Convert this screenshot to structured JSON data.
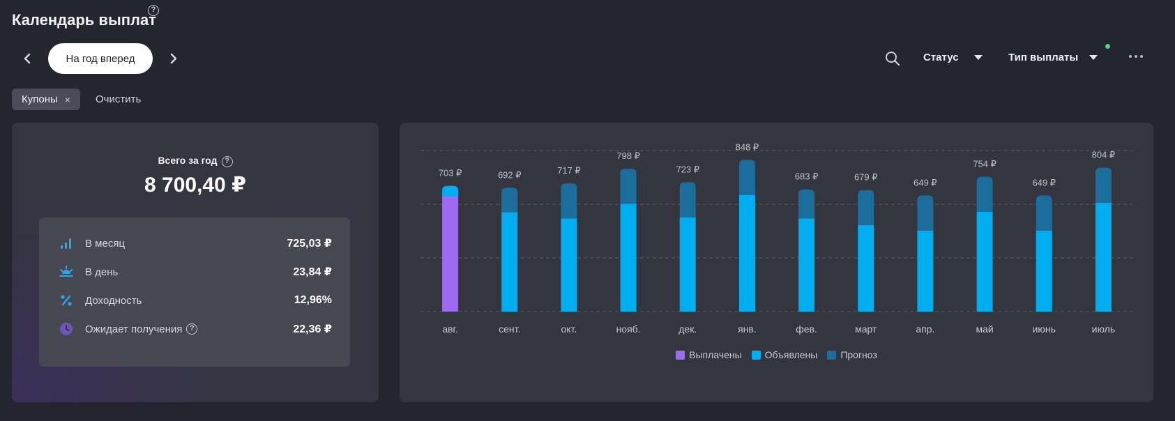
{
  "header": {
    "title": "Календарь выплат",
    "period_label": "На год вперед",
    "status_label": "Статус",
    "payout_type_label": "Тип выплаты"
  },
  "filters": {
    "chip_label": "Купоны",
    "chip_close": "×",
    "clear_label": "Очистить"
  },
  "summary": {
    "total_label": "Всего за год",
    "total_value": "8 700,40 ₽",
    "stats": [
      {
        "label": "В месяц",
        "value": "725,03 ₽",
        "icon": "bar-chart-icon"
      },
      {
        "label": "В день",
        "value": "23,84 ₽",
        "icon": "sunrise-icon"
      },
      {
        "label": "Доходность",
        "value": "12,96%",
        "icon": "percent-icon"
      },
      {
        "label": "Ожидает получения",
        "value": "22,36 ₽",
        "icon": "clock-icon"
      }
    ]
  },
  "colors": {
    "paid": "#9d6bf2",
    "announced": "#00adf0",
    "forecast": "#1b6e9c"
  },
  "chart_data": {
    "type": "bar",
    "stacked": true,
    "categories": [
      "авг.",
      "сент.",
      "окт.",
      "нояб.",
      "дек.",
      "янв.",
      "фев.",
      "март",
      "апр.",
      "май",
      "июнь",
      "июль"
    ],
    "value_labels": [
      "703 ₽",
      "692 ₽",
      "717 ₽",
      "798 ₽",
      "723 ₽",
      "848 ₽",
      "683 ₽",
      "679 ₽",
      "649 ₽",
      "754 ₽",
      "649 ₽",
      "804 ₽"
    ],
    "series": [
      {
        "name": "Выплачены",
        "color": "#9d6bf2",
        "values": [
          645,
          0,
          0,
          0,
          0,
          0,
          0,
          0,
          0,
          0,
          0,
          0
        ]
      },
      {
        "name": "Объявлены",
        "color": "#00adf0",
        "values": [
          58,
          555,
          521,
          602,
          527,
          652,
          521,
          483,
          453,
          558,
          453,
          608
        ]
      },
      {
        "name": "Прогноз",
        "color": "#1b6e9c",
        "values": [
          0,
          137,
          196,
          196,
          196,
          196,
          162,
          196,
          196,
          196,
          196,
          196
        ]
      }
    ],
    "ylim": [
      0,
      900
    ],
    "grid": true,
    "legend_position": "bottom"
  }
}
